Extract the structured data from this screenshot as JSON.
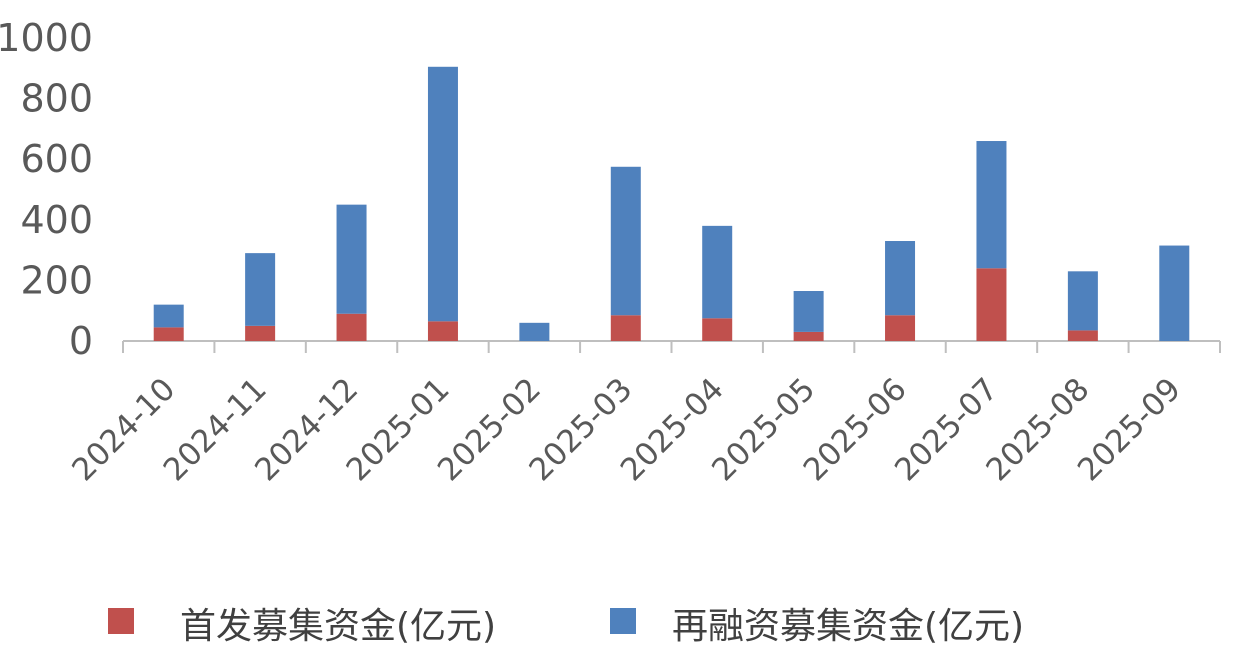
{
  "chart_data": {
    "type": "bar",
    "stacked": true,
    "categories": [
      "2024-10",
      "2024-11",
      "2024-12",
      "2025-01",
      "2025-02",
      "2025-03",
      "2025-04",
      "2025-05",
      "2025-06",
      "2025-07",
      "2025-08",
      "2025-09"
    ],
    "series": [
      {
        "name": "首发募集资金(亿元)",
        "color": "#C0504D",
        "values": [
          45,
          50,
          90,
          65,
          0,
          85,
          75,
          30,
          85,
          240,
          35,
          0
        ]
      },
      {
        "name": "再融资募集资金(亿元)",
        "color": "#4F81BD",
        "values": [
          75,
          240,
          360,
          840,
          60,
          490,
          305,
          135,
          245,
          420,
          195,
          315
        ]
      }
    ],
    "ylim": [
      0,
      1000
    ],
    "yticks": [
      "0",
      "200",
      "400",
      "600",
      "800",
      "1000"
    ],
    "legend_position": "bottom",
    "grid": false
  }
}
